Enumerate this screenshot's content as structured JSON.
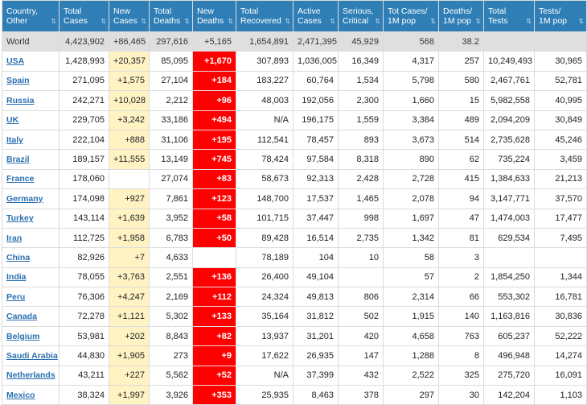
{
  "columns": [
    "Country,\nOther",
    "Total\nCases",
    "New\nCases",
    "Total\nDeaths",
    "New\nDeaths",
    "Total\nRecovered",
    "Active\nCases",
    "Serious,\nCritical",
    "Tot Cases/\n1M pop",
    "Deaths/\n1M pop",
    "Total\nTests",
    "Tests/\n1M pop"
  ],
  "sort_icon": "⇅",
  "colors": {
    "header_bg": "#2f7fb6",
    "new_cases_bg": "#fff3c4",
    "new_deaths_bg": "#ff0000",
    "world_bg": "#dfdfdf"
  },
  "rows": [
    {
      "country": "World",
      "total_cases": "4,423,902",
      "new_cases": "+86,465",
      "total_deaths": "297,616",
      "new_deaths": "+5,165",
      "total_recovered": "1,654,891",
      "active_cases": "2,471,395",
      "serious": "45,929",
      "cases_per_m": "568",
      "deaths_per_m": "38.2",
      "total_tests": "",
      "tests_per_m": ""
    },
    {
      "country": "USA",
      "total_cases": "1,428,993",
      "new_cases": "+20,357",
      "total_deaths": "85,095",
      "new_deaths": "+1,670",
      "total_recovered": "307,893",
      "active_cases": "1,036,005",
      "serious": "16,349",
      "cases_per_m": "4,317",
      "deaths_per_m": "257",
      "total_tests": "10,249,493",
      "tests_per_m": "30,965"
    },
    {
      "country": "Spain",
      "total_cases": "271,095",
      "new_cases": "+1,575",
      "total_deaths": "27,104",
      "new_deaths": "+184",
      "total_recovered": "183,227",
      "active_cases": "60,764",
      "serious": "1,534",
      "cases_per_m": "5,798",
      "deaths_per_m": "580",
      "total_tests": "2,467,761",
      "tests_per_m": "52,781"
    },
    {
      "country": "Russia",
      "total_cases": "242,271",
      "new_cases": "+10,028",
      "total_deaths": "2,212",
      "new_deaths": "+96",
      "total_recovered": "48,003",
      "active_cases": "192,056",
      "serious": "2,300",
      "cases_per_m": "1,660",
      "deaths_per_m": "15",
      "total_tests": "5,982,558",
      "tests_per_m": "40,995"
    },
    {
      "country": "UK",
      "total_cases": "229,705",
      "new_cases": "+3,242",
      "total_deaths": "33,186",
      "new_deaths": "+494",
      "total_recovered": "N/A",
      "active_cases": "196,175",
      "serious": "1,559",
      "cases_per_m": "3,384",
      "deaths_per_m": "489",
      "total_tests": "2,094,209",
      "tests_per_m": "30,849"
    },
    {
      "country": "Italy",
      "total_cases": "222,104",
      "new_cases": "+888",
      "total_deaths": "31,106",
      "new_deaths": "+195",
      "total_recovered": "112,541",
      "active_cases": "78,457",
      "serious": "893",
      "cases_per_m": "3,673",
      "deaths_per_m": "514",
      "total_tests": "2,735,628",
      "tests_per_m": "45,246"
    },
    {
      "country": "Brazil",
      "total_cases": "189,157",
      "new_cases": "+11,555",
      "total_deaths": "13,149",
      "new_deaths": "+745",
      "total_recovered": "78,424",
      "active_cases": "97,584",
      "serious": "8,318",
      "cases_per_m": "890",
      "deaths_per_m": "62",
      "total_tests": "735,224",
      "tests_per_m": "3,459"
    },
    {
      "country": "France",
      "total_cases": "178,060",
      "new_cases": "",
      "total_deaths": "27,074",
      "new_deaths": "+83",
      "total_recovered": "58,673",
      "active_cases": "92,313",
      "serious": "2,428",
      "cases_per_m": "2,728",
      "deaths_per_m": "415",
      "total_tests": "1,384,633",
      "tests_per_m": "21,213"
    },
    {
      "country": "Germany",
      "total_cases": "174,098",
      "new_cases": "+927",
      "total_deaths": "7,861",
      "new_deaths": "+123",
      "total_recovered": "148,700",
      "active_cases": "17,537",
      "serious": "1,465",
      "cases_per_m": "2,078",
      "deaths_per_m": "94",
      "total_tests": "3,147,771",
      "tests_per_m": "37,570"
    },
    {
      "country": "Turkey",
      "total_cases": "143,114",
      "new_cases": "+1,639",
      "total_deaths": "3,952",
      "new_deaths": "+58",
      "total_recovered": "101,715",
      "active_cases": "37,447",
      "serious": "998",
      "cases_per_m": "1,697",
      "deaths_per_m": "47",
      "total_tests": "1,474,003",
      "tests_per_m": "17,477"
    },
    {
      "country": "Iran",
      "total_cases": "112,725",
      "new_cases": "+1,958",
      "total_deaths": "6,783",
      "new_deaths": "+50",
      "total_recovered": "89,428",
      "active_cases": "16,514",
      "serious": "2,735",
      "cases_per_m": "1,342",
      "deaths_per_m": "81",
      "total_tests": "629,534",
      "tests_per_m": "7,495"
    },
    {
      "country": "China",
      "total_cases": "82,926",
      "new_cases": "+7",
      "total_deaths": "4,633",
      "new_deaths": "",
      "total_recovered": "78,189",
      "active_cases": "104",
      "serious": "10",
      "cases_per_m": "58",
      "deaths_per_m": "3",
      "total_tests": "",
      "tests_per_m": ""
    },
    {
      "country": "India",
      "total_cases": "78,055",
      "new_cases": "+3,763",
      "total_deaths": "2,551",
      "new_deaths": "+136",
      "total_recovered": "26,400",
      "active_cases": "49,104",
      "serious": "",
      "cases_per_m": "57",
      "deaths_per_m": "2",
      "total_tests": "1,854,250",
      "tests_per_m": "1,344"
    },
    {
      "country": "Peru",
      "total_cases": "76,306",
      "new_cases": "+4,247",
      "total_deaths": "2,169",
      "new_deaths": "+112",
      "total_recovered": "24,324",
      "active_cases": "49,813",
      "serious": "806",
      "cases_per_m": "2,314",
      "deaths_per_m": "66",
      "total_tests": "553,302",
      "tests_per_m": "16,781"
    },
    {
      "country": "Canada",
      "total_cases": "72,278",
      "new_cases": "+1,121",
      "total_deaths": "5,302",
      "new_deaths": "+133",
      "total_recovered": "35,164",
      "active_cases": "31,812",
      "serious": "502",
      "cases_per_m": "1,915",
      "deaths_per_m": "140",
      "total_tests": "1,163,816",
      "tests_per_m": "30,836"
    },
    {
      "country": "Belgium",
      "total_cases": "53,981",
      "new_cases": "+202",
      "total_deaths": "8,843",
      "new_deaths": "+82",
      "total_recovered": "13,937",
      "active_cases": "31,201",
      "serious": "420",
      "cases_per_m": "4,658",
      "deaths_per_m": "763",
      "total_tests": "605,237",
      "tests_per_m": "52,222"
    },
    {
      "country": "Saudi Arabia",
      "total_cases": "44,830",
      "new_cases": "+1,905",
      "total_deaths": "273",
      "new_deaths": "+9",
      "total_recovered": "17,622",
      "active_cases": "26,935",
      "serious": "147",
      "cases_per_m": "1,288",
      "deaths_per_m": "8",
      "total_tests": "496,948",
      "tests_per_m": "14,274"
    },
    {
      "country": "Netherlands",
      "total_cases": "43,211",
      "new_cases": "+227",
      "total_deaths": "5,562",
      "new_deaths": "+52",
      "total_recovered": "N/A",
      "active_cases": "37,399",
      "serious": "432",
      "cases_per_m": "2,522",
      "deaths_per_m": "325",
      "total_tests": "275,720",
      "tests_per_m": "16,091"
    },
    {
      "country": "Mexico",
      "total_cases": "38,324",
      "new_cases": "+1,997",
      "total_deaths": "3,926",
      "new_deaths": "+353",
      "total_recovered": "25,935",
      "active_cases": "8,463",
      "serious": "378",
      "cases_per_m": "297",
      "deaths_per_m": "30",
      "total_tests": "142,204",
      "tests_per_m": "1,103"
    }
  ]
}
